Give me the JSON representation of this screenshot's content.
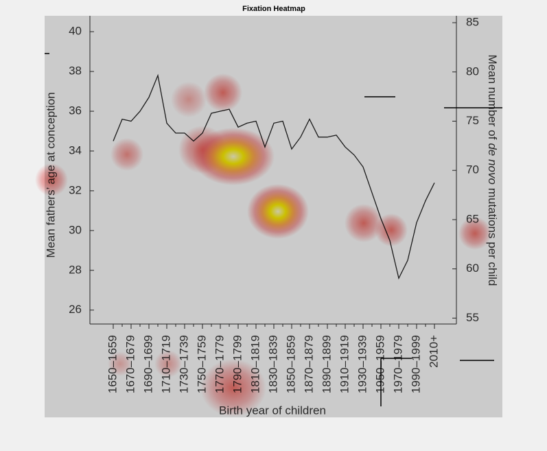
{
  "chart_data": {
    "type": "line",
    "title": "Fixation Heatmap",
    "xlabel": "Birth year of children",
    "ylabel": "Mean fathers’ age at conception",
    "y2label": [
      "Mean number of",
      "de novo",
      "mutations per child"
    ],
    "categories": [
      "1650–1659",
      null,
      "1670–1679",
      null,
      "1690–1699",
      null,
      "1710–1719",
      null,
      "1730–1739",
      null,
      "1750–1759",
      null,
      "1770–1779",
      null,
      "1790–1799",
      null,
      "1810–1819",
      null,
      "1830–1839",
      null,
      "1850–1859",
      null,
      "1870–1879",
      null,
      "1890–1899",
      null,
      "1910–1919",
      null,
      "1930–1939",
      null,
      "1950–1959",
      null,
      "1970–1979",
      null,
      "1990–1999",
      null,
      "2010+"
    ],
    "series": [
      {
        "name": "Mean fathers’ age",
        "color": "#1a1a1a",
        "values": [
          34.5,
          35.6,
          35.5,
          36.0,
          36.7,
          37.8,
          35.4,
          34.9,
          34.9,
          34.5,
          34.9,
          35.9,
          36.0,
          36.1,
          35.2,
          35.4,
          35.5,
          34.2,
          35.4,
          35.5,
          34.1,
          34.7,
          35.6,
          34.7,
          34.7,
          34.8,
          34.2,
          33.8,
          33.2,
          31.9,
          30.6,
          29.5,
          27.6,
          28.5,
          30.4,
          31.5,
          32.4
        ]
      }
    ],
    "ylim": [
      25.3,
      40.8
    ],
    "yticks": [
      26,
      28,
      30,
      32,
      34,
      36,
      38,
      40
    ],
    "y2lim": [
      54.4,
      85.7
    ],
    "y2ticks": [
      55,
      60,
      65,
      70,
      75,
      80,
      85
    ]
  }
}
